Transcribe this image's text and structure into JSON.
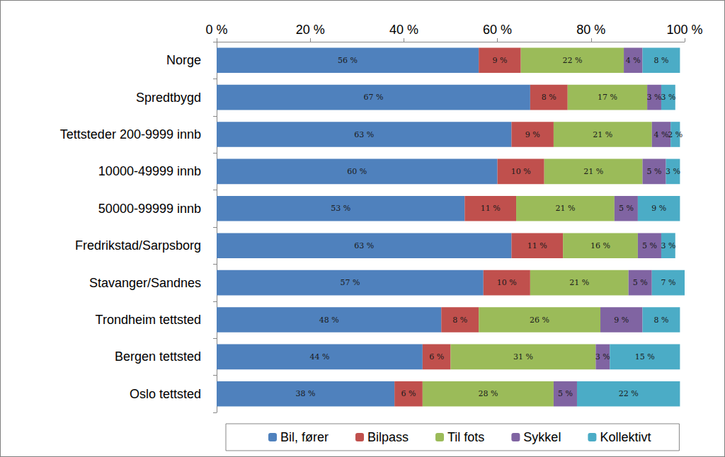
{
  "chart_data": {
    "type": "bar",
    "orientation": "horizontal",
    "stacked": true,
    "data_labels": true,
    "grid": false,
    "legend": "bottom",
    "categories": [
      "Norge",
      "Spredtbygd",
      "Tettsteder 200-9999 innb",
      "10000-49999 innb",
      "50000-99999 innb",
      "Fredrikstad/Sarpsborg",
      "Stavanger/Sandnes",
      "Trondheim tettsted",
      "Bergen tettsted",
      "Oslo tettsted"
    ],
    "xlim": [
      0,
      100
    ],
    "xticks": [
      {
        "value": 0,
        "label": "0 %"
      },
      {
        "value": 20,
        "label": "20 %"
      },
      {
        "value": 40,
        "label": "40 %"
      },
      {
        "value": 60,
        "label": "60 %"
      },
      {
        "value": 80,
        "label": "80 %"
      },
      {
        "value": 100,
        "label": "100 %"
      }
    ],
    "series": [
      {
        "name": "Bil, fører",
        "color": "#4f81bd",
        "values": [
          56,
          67,
          63,
          60,
          53,
          63,
          57,
          48,
          44,
          38
        ],
        "value_labels": [
          "56 %",
          "67 %",
          "63 %",
          "60 %",
          "53 %",
          "63 %",
          "57 %",
          "48 %",
          "44 %",
          "38 %"
        ]
      },
      {
        "name": "Bilpass",
        "color": "#c0504d",
        "values": [
          9,
          8,
          9,
          10,
          11,
          11,
          10,
          8,
          6,
          6
        ],
        "value_labels": [
          "9 %",
          "8 %",
          "9 %",
          "10 %",
          "11 %",
          "11 %",
          "10 %",
          "8 %",
          "6 %",
          "6 %"
        ]
      },
      {
        "name": "Til fots",
        "color": "#9bbb59",
        "values": [
          22,
          17,
          21,
          21,
          21,
          16,
          21,
          26,
          31,
          28
        ],
        "value_labels": [
          "22 %",
          "17 %",
          "21 %",
          "21 %",
          "21 %",
          "16 %",
          "21 %",
          "26 %",
          "31 %",
          "28 %"
        ]
      },
      {
        "name": "Sykkel",
        "color": "#8064a2",
        "values": [
          4,
          3,
          4,
          5,
          5,
          5,
          5,
          9,
          3,
          5
        ],
        "value_labels": [
          "4 %",
          "3 %",
          "4 %",
          "5 %",
          "5 %",
          "5 %",
          "5 %",
          "9 %",
          "3 %",
          "5 %"
        ]
      },
      {
        "name": "Kollektivt",
        "color": "#4bacc6",
        "values": [
          8,
          3,
          2,
          3,
          9,
          3,
          7,
          8,
          15,
          22
        ],
        "value_labels": [
          "8 %",
          "3 %",
          "2 %",
          "3 %",
          "9 %",
          "3 %",
          "7 %",
          "8 %",
          "15 %",
          "22 %"
        ]
      }
    ]
  }
}
